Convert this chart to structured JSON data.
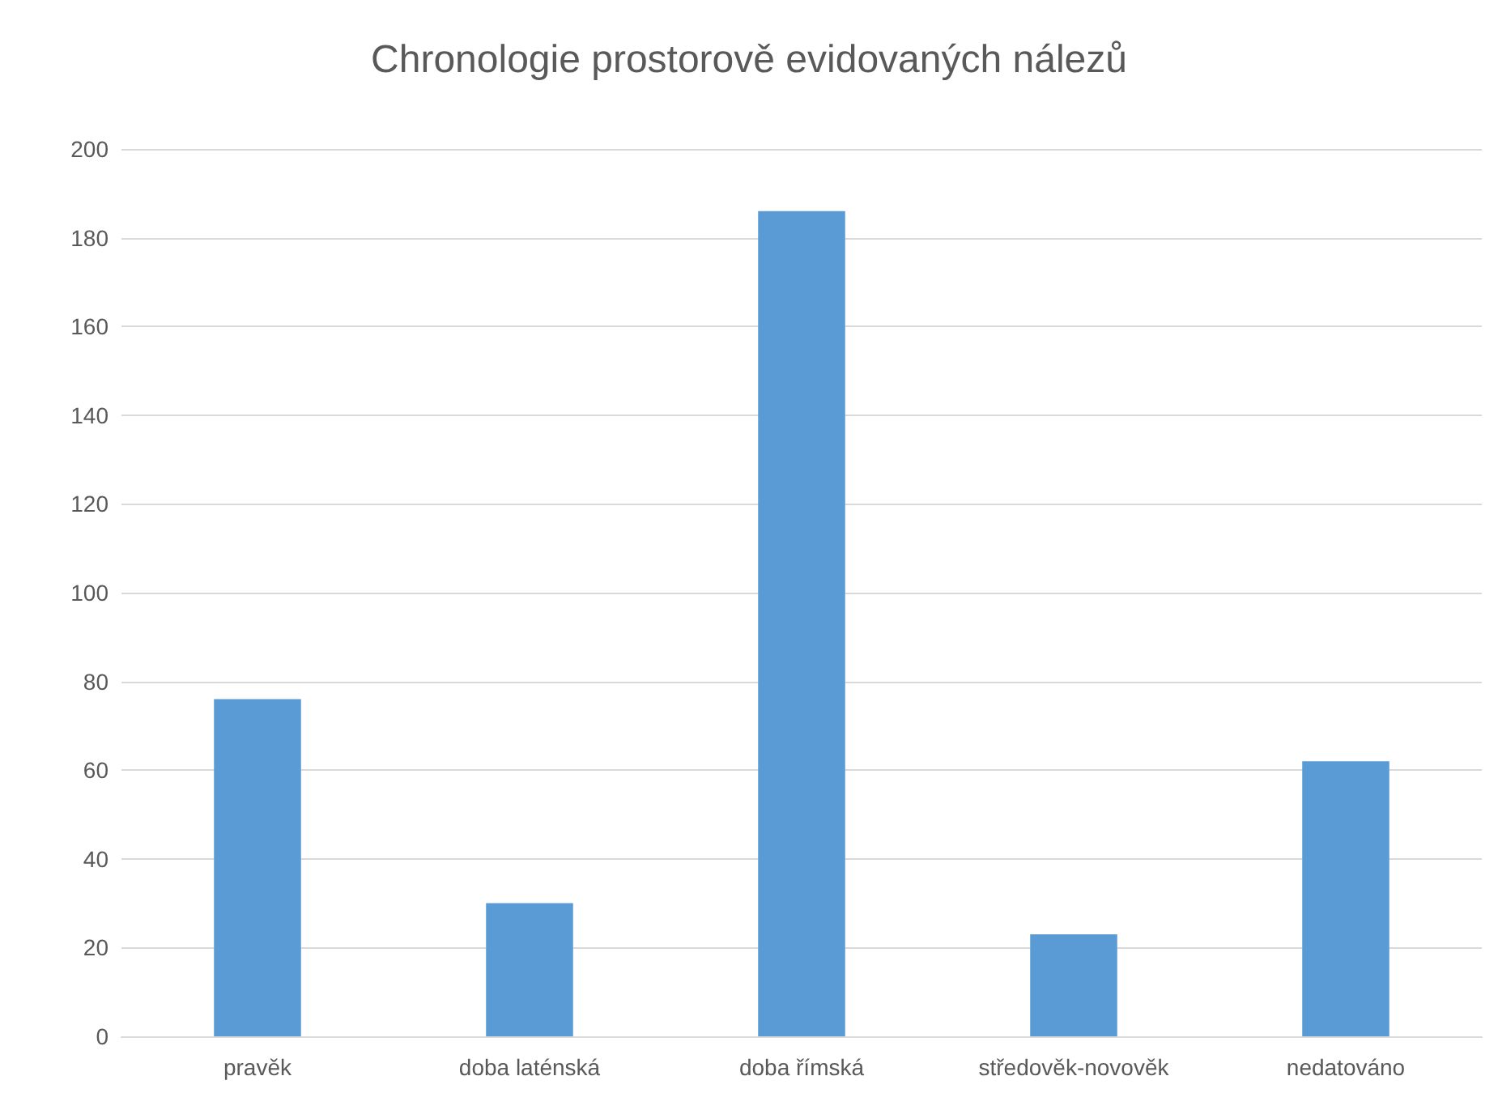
{
  "chart_data": {
    "type": "bar",
    "title": "Chronologie prostorově evidovaných nálezů",
    "categories": [
      "pravěk",
      "doba laténská",
      "doba římská",
      "středověk-novověk",
      "nedatováno"
    ],
    "values": [
      76,
      30,
      186,
      23,
      62
    ],
    "color": "#5b9bd5",
    "ylim": [
      0,
      200
    ],
    "yticks": [
      0,
      20,
      40,
      60,
      80,
      100,
      120,
      140,
      160,
      180,
      200
    ],
    "grid": "y"
  }
}
